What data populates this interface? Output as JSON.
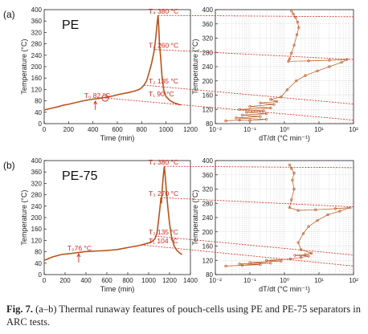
{
  "caption": {
    "label": "Fig. 7.",
    "text": "(a–b) Thermal runaway features of pouch-cells using PE and PE-75 separators in ARC tests."
  },
  "colors": {
    "curve": "#b8541c",
    "annotation": "#d8261c",
    "axis": "#222222",
    "grid": "#bdbdbd"
  },
  "chart_data": [
    {
      "type": "line",
      "panel": "(a)",
      "sample_label": "PE",
      "xlabel": "Time (min)",
      "ylabel": "Temperature (°C)",
      "xlim": [
        0,
        1200
      ],
      "ylim": [
        0,
        400
      ],
      "xticks": [
        0,
        200,
        400,
        600,
        800,
        1000,
        1200
      ],
      "yticks": [
        0,
        40,
        80,
        120,
        160,
        200,
        240,
        280,
        320,
        360,
        400
      ],
      "series": [
        {
          "points": [
            [
              0,
              48
            ],
            [
              40,
              52
            ],
            [
              80,
              56
            ],
            [
              120,
              60
            ],
            [
              160,
              65
            ],
            [
              200,
              68
            ],
            [
              240,
              72
            ],
            [
              280,
              76
            ],
            [
              320,
              80
            ],
            [
              360,
              83
            ],
            [
              400,
              86
            ],
            [
              440,
              88
            ],
            [
              500,
              92
            ],
            [
              560,
              97
            ],
            [
              620,
              103
            ],
            [
              680,
              108
            ],
            [
              740,
              114
            ],
            [
              780,
              120
            ],
            [
              800,
              126
            ],
            [
              820,
              136
            ],
            [
              840,
              150
            ],
            [
              860,
              178
            ],
            [
              880,
              210
            ],
            [
              900,
              250
            ],
            [
              910,
              280
            ],
            [
              920,
              320
            ],
            [
              928,
              355
            ],
            [
              934,
              380
            ],
            [
              940,
              340
            ],
            [
              946,
              280
            ],
            [
              956,
              230
            ],
            [
              966,
              170
            ],
            [
              980,
              120
            ],
            [
              1000,
              95
            ],
            [
              1030,
              82
            ],
            [
              1060,
              74
            ],
            [
              1090,
              70
            ],
            [
              1120,
              65
            ]
          ]
        }
      ],
      "annotations": [
        {
          "text": "T₀ 82 °C",
          "x": 420,
          "y": 82,
          "side": "left"
        },
        {
          "text": "T₁ 90 °C",
          "x": 500,
          "y": 90,
          "side": "right"
        },
        {
          "text": "T₂ 135 °C",
          "x": 820,
          "y": 135,
          "side": "right"
        },
        {
          "text": "T₃ 260 °C",
          "x": 910,
          "y": 260,
          "side": "right"
        },
        {
          "text": "T₄ 380 °C",
          "x": 934,
          "y": 380,
          "side": "right"
        }
      ]
    },
    {
      "type": "scatter",
      "panel": "(a)",
      "xlabel": "dT/dt (°C min⁻¹)",
      "ylabel": "Temperature (°C)",
      "xscale": "log",
      "xlim": [
        0.01,
        100
      ],
      "ylim": [
        80,
        400
      ],
      "xticks": [
        "10⁻²",
        "10⁻¹",
        "10⁰",
        "10¹",
        "10²"
      ],
      "yticks": [
        80,
        120,
        160,
        200,
        240,
        280,
        320,
        360,
        400
      ],
      "series": [
        {
          "points": [
            [
              0.02,
              88
            ],
            [
              0.05,
              90
            ],
            [
              0.1,
              89
            ],
            [
              0.3,
              92
            ],
            [
              0.04,
              96
            ],
            [
              0.2,
              100
            ],
            [
              0.06,
              104
            ],
            [
              0.3,
              108
            ],
            [
              0.08,
              112
            ],
            [
              0.25,
              116
            ],
            [
              0.05,
              120
            ],
            [
              0.4,
              124
            ],
            [
              0.1,
              128
            ],
            [
              0.5,
              134
            ],
            [
              0.2,
              138
            ],
            [
              0.6,
              142
            ],
            [
              0.4,
              148
            ],
            [
              0.8,
              155
            ],
            [
              1.2,
              175
            ],
            [
              2.2,
              200
            ],
            [
              4,
              215
            ],
            [
              9,
              228
            ],
            [
              20,
              240
            ],
            [
              45,
              252
            ],
            [
              65,
              260
            ],
            [
              20,
              258
            ],
            [
              5,
              256
            ],
            [
              1.3,
              255
            ],
            [
              1.4,
              262
            ],
            [
              1.6,
              278
            ],
            [
              1.9,
              300
            ],
            [
              2.3,
              330
            ],
            [
              2.6,
              350
            ],
            [
              2.4,
              365
            ],
            [
              2.1,
              378
            ],
            [
              1.8,
              388
            ],
            [
              1.6,
              396
            ]
          ]
        }
      ]
    },
    {
      "type": "line",
      "panel": "(b)",
      "sample_label": "PE-75",
      "xlabel": "Time (min)",
      "ylabel": "Temperature (°C)",
      "xlim": [
        0,
        1400
      ],
      "ylim": [
        0,
        400
      ],
      "xticks": [
        0,
        200,
        400,
        600,
        800,
        1000,
        1200,
        1400
      ],
      "yticks": [
        0,
        40,
        80,
        120,
        160,
        200,
        240,
        280,
        320,
        360,
        400
      ],
      "series": [
        {
          "points": [
            [
              0,
              50
            ],
            [
              40,
              56
            ],
            [
              80,
              62
            ],
            [
              120,
              66
            ],
            [
              160,
              70
            ],
            [
              200,
              72
            ],
            [
              260,
              74
            ],
            [
              300,
              76
            ],
            [
              340,
              78
            ],
            [
              380,
              80
            ],
            [
              420,
              81
            ],
            [
              460,
              82
            ],
            [
              520,
              83
            ],
            [
              580,
              84
            ],
            [
              640,
              86
            ],
            [
              700,
              88
            ],
            [
              760,
              92
            ],
            [
              820,
              96
            ],
            [
              880,
              100
            ],
            [
              930,
              104
            ],
            [
              970,
              108
            ],
            [
              1010,
              112
            ],
            [
              1040,
              118
            ],
            [
              1060,
              126
            ],
            [
              1080,
              145
            ],
            [
              1095,
              190
            ],
            [
              1110,
              240
            ],
            [
              1118,
              270
            ],
            [
              1122,
              250
            ],
            [
              1130,
              300
            ],
            [
              1140,
              345
            ],
            [
              1150,
              380
            ],
            [
              1160,
              340
            ],
            [
              1170,
              290
            ],
            [
              1185,
              230
            ],
            [
              1200,
              180
            ],
            [
              1220,
              130
            ],
            [
              1245,
              100
            ],
            [
              1270,
              85
            ],
            [
              1300,
              75
            ],
            [
              1320,
              70
            ]
          ]
        }
      ],
      "annotations": [
        {
          "text": "T₀76 °C",
          "x": 330,
          "y": 76,
          "side": "left"
        },
        {
          "text": "T₁ 104 °C",
          "x": 930,
          "y": 104,
          "side": "right"
        },
        {
          "text": "T₂ 135 °C",
          "x": 1060,
          "y": 135,
          "side": "right"
        },
        {
          "text": "T₃ 270 °C",
          "x": 1118,
          "y": 270,
          "side": "right"
        },
        {
          "text": "T₄ 380 °C",
          "x": 1150,
          "y": 380,
          "side": "right"
        }
      ]
    },
    {
      "type": "scatter",
      "panel": "(b)",
      "xlabel": "dT/dt (°C min⁻¹)",
      "ylabel": "Temperature (°C)",
      "xscale": "log",
      "xlim": [
        0.01,
        100
      ],
      "ylim": [
        80,
        400
      ],
      "xticks": [
        "10⁻²",
        "10⁻¹",
        "10⁰",
        "10¹",
        "10²"
      ],
      "yticks": [
        80,
        120,
        160,
        200,
        240,
        280,
        320,
        360,
        400
      ],
      "series": [
        {
          "points": [
            [
              0.02,
              104
            ],
            [
              0.06,
              106
            ],
            [
              0.2,
              108
            ],
            [
              0.05,
              110
            ],
            [
              0.4,
              112
            ],
            [
              0.1,
              114
            ],
            [
              0.8,
              118
            ],
            [
              0.3,
              120
            ],
            [
              1.5,
              124
            ],
            [
              3,
              128
            ],
            [
              5,
              132
            ],
            [
              2,
              134
            ],
            [
              4,
              136
            ],
            [
              6,
              140
            ],
            [
              3,
              150
            ],
            [
              2.5,
              170
            ],
            [
              3.5,
              195
            ],
            [
              5,
              215
            ],
            [
              9,
              232
            ],
            [
              18,
              248
            ],
            [
              40,
              258
            ],
            [
              80,
              268
            ],
            [
              30,
              265
            ],
            [
              8,
              262
            ],
            [
              2.5,
              260
            ],
            [
              1.4,
              268
            ],
            [
              1.6,
              290
            ],
            [
              1.9,
              320
            ],
            [
              1.7,
              345
            ],
            [
              1.9,
              365
            ],
            [
              1.6,
              378
            ],
            [
              1.4,
              388
            ]
          ]
        }
      ]
    }
  ]
}
